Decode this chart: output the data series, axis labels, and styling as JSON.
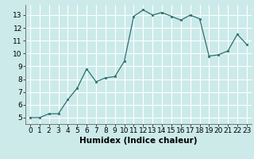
{
  "x": [
    0,
    1,
    2,
    3,
    4,
    5,
    6,
    7,
    8,
    9,
    10,
    11,
    12,
    13,
    14,
    15,
    16,
    17,
    18,
    19,
    20,
    21,
    22,
    23
  ],
  "y": [
    5.0,
    5.0,
    5.3,
    5.3,
    6.4,
    7.3,
    8.8,
    7.8,
    8.1,
    8.2,
    9.4,
    12.9,
    13.4,
    13.0,
    13.2,
    12.9,
    12.6,
    13.0,
    12.7,
    9.8,
    9.9,
    10.2,
    11.5,
    10.7
  ],
  "xlabel": "Humidex (Indice chaleur)",
  "xlim": [
    -0.5,
    23.5
  ],
  "ylim": [
    4.5,
    13.8
  ],
  "yticks": [
    5,
    6,
    7,
    8,
    9,
    10,
    11,
    12,
    13
  ],
  "xticks": [
    0,
    1,
    2,
    3,
    4,
    5,
    6,
    7,
    8,
    9,
    10,
    11,
    12,
    13,
    14,
    15,
    16,
    17,
    18,
    19,
    20,
    21,
    22,
    23
  ],
  "line_color": "#2d7070",
  "bg_color": "#cceaea",
  "grid_color": "#ffffff",
  "label_fontsize": 7.5,
  "tick_fontsize": 6.5
}
